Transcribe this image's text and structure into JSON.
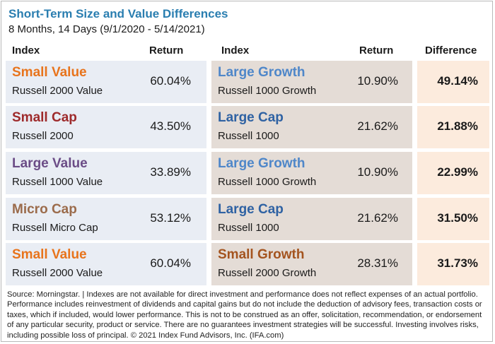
{
  "title": "Short-Term Size and Value Differences",
  "subtitle": "8 Months, 14 Days (9/1/2020 - 5/14/2021)",
  "headers": {
    "index_left": "Index",
    "return_left": "Return",
    "index_right": "Index",
    "return_right": "Return",
    "difference": "Difference"
  },
  "colors": {
    "title": "#2a7eb0",
    "small_value": "#e8741c",
    "small_cap": "#9e2a2b",
    "large_value": "#6b4c86",
    "micro_cap": "#9b6b4b",
    "large_growth": "#4f87c9",
    "large_cap": "#2f62a3",
    "small_growth": "#a4541f",
    "left_bg": "#e9edf4",
    "mid_bg": "#e4dcd6",
    "diff_bg": "#fcebdd"
  },
  "rows": [
    {
      "left_name": "Small Value",
      "left_index": "Russell 2000 Value",
      "left_return": "60.04%",
      "right_name": "Large Growth",
      "right_index": "Russell 1000 Growth",
      "right_return": "10.90%",
      "difference": "49.14%"
    },
    {
      "left_name": "Small Cap",
      "left_index": "Russell 2000",
      "left_return": "43.50%",
      "right_name": "Large Cap",
      "right_index": "Russell 1000",
      "right_return": "21.62%",
      "difference": "21.88%"
    },
    {
      "left_name": "Large Value",
      "left_index": "Russell 1000 Value",
      "left_return": "33.89%",
      "right_name": "Large Growth",
      "right_index": "Russell 1000 Growth",
      "right_return": "10.90%",
      "difference": "22.99%"
    },
    {
      "left_name": "Micro Cap",
      "left_index": "Russell Micro Cap",
      "left_return": "53.12%",
      "right_name": "Large Cap",
      "right_index": "Russell 1000",
      "right_return": "21.62%",
      "difference": "31.50%"
    },
    {
      "left_name": "Small Value",
      "left_index": "Russell 2000 Value",
      "left_return": "60.04%",
      "right_name": "Small Growth",
      "right_index": "Russell 2000 Growth",
      "right_return": "28.31%",
      "difference": "31.73%"
    }
  ],
  "footer": "Source: Morningstar. | Indexes are not available for direct investment and performance does not reflect expenses of an actual portfolio. Performance includes reinvestment of dividends and capital gains but do not include the deduction of advisory fees, transaction costs or taxes, which if included, would lower performance. This is not to be construed as an offer, solicitation, recommendation, or endorsement of any particular security, product or service. There are no guarantees investment strategies will be successful. Investing involves risks, including possible loss of principal. © 2021 Index Fund Advisors, Inc. (IFA.com)"
}
